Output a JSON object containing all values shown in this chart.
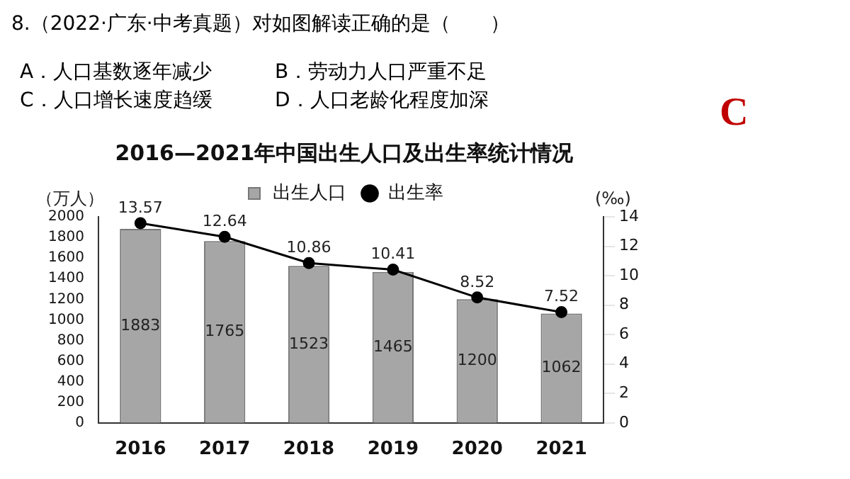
{
  "chart_data": {
    "type": "bar",
    "title": "2016—2021年中国出生人口及出生率统计情况",
    "annotations": [
      "8.（2022·广东·中考真题）对如图解读正确的是（　　）",
      "A．人口基数逐年减少",
      "B．劳动力人口严重不足",
      "C．人口增长速度趋缓",
      "D．人口老龄化程度加深",
      "C"
    ],
    "ylabel": "（万人）",
    "y2label": "(‰)",
    "categories": [
      "2016",
      "2017",
      "2018",
      "2019",
      "2020",
      "2021"
    ],
    "series": [
      {
        "name": "出生人口",
        "color": "#a6a6a6",
        "values": [
          1883,
          1765,
          1523,
          1465,
          1200,
          1062
        ]
      },
      {
        "name": "出生率",
        "type": "line",
        "axis": "y2",
        "color": "#000000",
        "values": [
          13.57,
          12.64,
          10.86,
          10.41,
          8.52,
          7.52
        ]
      }
    ],
    "ylim": [
      0,
      2000
    ],
    "yticks": [
      0,
      200,
      400,
      600,
      800,
      1000,
      1200,
      1400,
      1600,
      1800,
      2000
    ],
    "y2lim": [
      0,
      14
    ],
    "y2ticks": [
      0,
      2,
      4,
      6,
      8,
      10,
      12,
      14
    ],
    "data_labels": true,
    "legend": "top",
    "grid": false,
    "marker": "circle"
  }
}
